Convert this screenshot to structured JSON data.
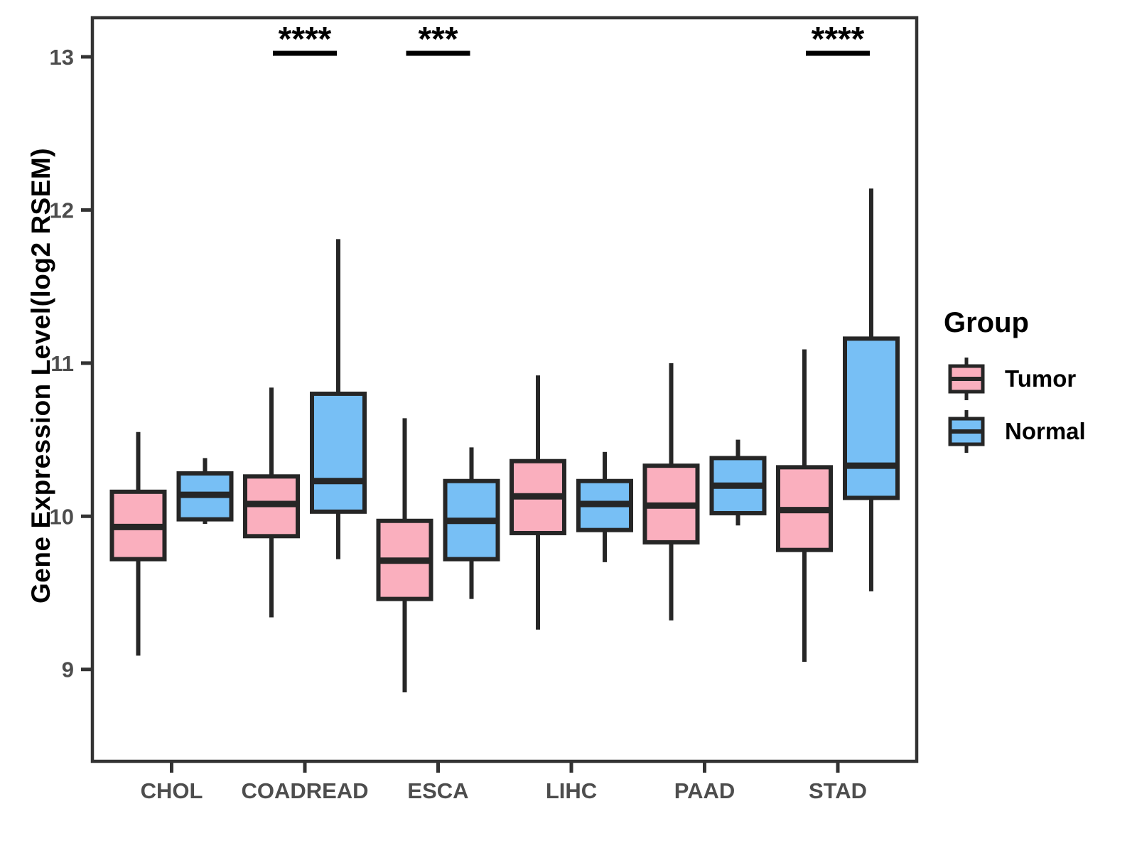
{
  "chart_data": {
    "type": "boxplot",
    "title": "",
    "xlabel": "",
    "ylabel": "Gene Expression Level(log2 RSEM)",
    "ylim": [
      8.4,
      13.255
    ],
    "yticks": [
      9,
      10,
      11,
      12,
      13
    ],
    "grid": false,
    "categories": [
      "CHOL",
      "COADREAD",
      "ESCA",
      "LIHC",
      "PAAD",
      "STAD"
    ],
    "groups": [
      {
        "name": "Tumor",
        "fill": "#FAAFBE"
      },
      {
        "name": "Normal",
        "fill": "#77BFF5"
      }
    ],
    "series": [
      {
        "name": "Tumor",
        "fill": "#FAAFBE",
        "boxes": [
          {
            "category": "CHOL",
            "whisker_low": 9.09,
            "q1": 9.72,
            "median": 9.93,
            "q3": 10.16,
            "whisker_high": 10.55
          },
          {
            "category": "COADREAD",
            "whisker_low": 9.34,
            "q1": 9.87,
            "median": 10.08,
            "q3": 10.26,
            "whisker_high": 10.84
          },
          {
            "category": "ESCA",
            "whisker_low": 8.85,
            "q1": 9.46,
            "median": 9.71,
            "q3": 9.97,
            "whisker_high": 10.64
          },
          {
            "category": "LIHC",
            "whisker_low": 9.26,
            "q1": 9.89,
            "median": 10.13,
            "q3": 10.36,
            "whisker_high": 10.92
          },
          {
            "category": "PAAD",
            "whisker_low": 9.32,
            "q1": 9.83,
            "median": 10.07,
            "q3": 10.33,
            "whisker_high": 11.0
          },
          {
            "category": "STAD",
            "whisker_low": 9.05,
            "q1": 9.78,
            "median": 10.04,
            "q3": 10.32,
            "whisker_high": 11.09
          }
        ]
      },
      {
        "name": "Normal",
        "fill": "#77BFF5",
        "boxes": [
          {
            "category": "CHOL",
            "whisker_low": 9.95,
            "q1": 9.98,
            "median": 10.14,
            "q3": 10.28,
            "whisker_high": 10.38
          },
          {
            "category": "COADREAD",
            "whisker_low": 9.72,
            "q1": 10.03,
            "median": 10.23,
            "q3": 10.8,
            "whisker_high": 11.81
          },
          {
            "category": "ESCA",
            "whisker_low": 9.46,
            "q1": 9.72,
            "median": 9.97,
            "q3": 10.23,
            "whisker_high": 10.45
          },
          {
            "category": "LIHC",
            "whisker_low": 9.7,
            "q1": 9.91,
            "median": 10.08,
            "q3": 10.23,
            "whisker_high": 10.42
          },
          {
            "category": "PAAD",
            "whisker_low": 9.94,
            "q1": 10.02,
            "median": 10.2,
            "q3": 10.38,
            "whisker_high": 10.5
          },
          {
            "category": "STAD",
            "whisker_low": 9.51,
            "q1": 10.12,
            "median": 10.33,
            "q3": 11.16,
            "whisker_high": 12.14
          }
        ]
      }
    ],
    "significance": [
      {
        "category": "COADREAD",
        "label": "****"
      },
      {
        "category": "ESCA",
        "label": "***"
      },
      {
        "category": "STAD",
        "label": "****"
      }
    ],
    "legend": {
      "title": "Group",
      "position": "right"
    },
    "colors": {
      "tumor_fill": "#FAAFBE",
      "normal_fill": "#77BFF5",
      "box_stroke": "#262626",
      "axis_stroke": "#333333",
      "tick_text": "#4d4d4d",
      "background": "#ffffff"
    }
  }
}
